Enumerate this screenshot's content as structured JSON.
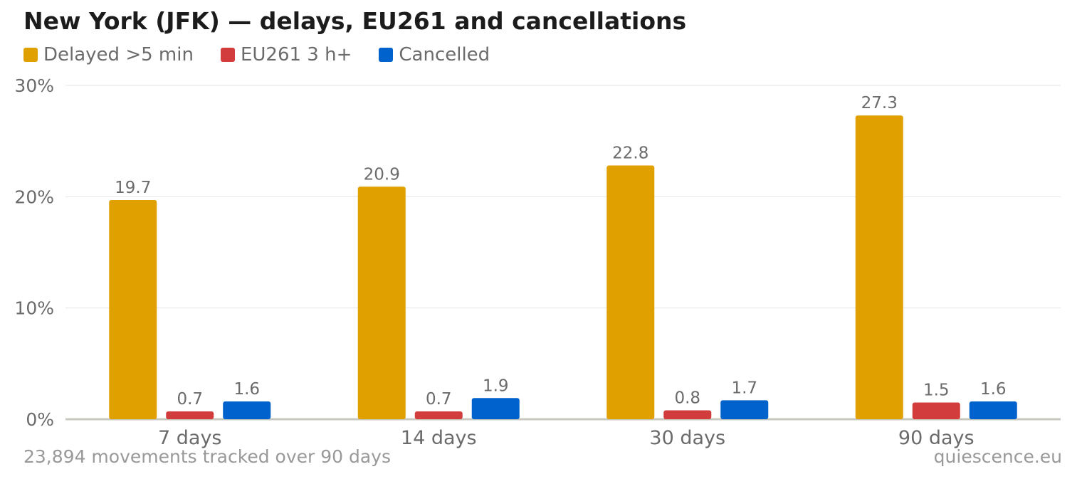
{
  "chart_data": {
    "type": "bar",
    "title": "New York (JFK) — delays, EU261 and cancellations",
    "categories": [
      "7 days",
      "14 days",
      "30 days",
      "90 days"
    ],
    "series": [
      {
        "name": "Delayed >5 min",
        "color": "#e0a000",
        "values": [
          19.7,
          20.9,
          22.8,
          27.3
        ],
        "labels": [
          "19.7",
          "20.9",
          "22.8",
          "27.3"
        ]
      },
      {
        "name": "EU261 3 h+",
        "color": "#d23c3c",
        "values": [
          0.7,
          0.7,
          0.8,
          1.5
        ],
        "labels": [
          "0.7",
          "0.7",
          "0.8",
          "1.5"
        ]
      },
      {
        "name": "Cancelled",
        "color": "#0062cc",
        "values": [
          1.6,
          1.9,
          1.7,
          1.6
        ],
        "labels": [
          "1.6",
          "1.9",
          "1.7",
          "1.6"
        ]
      }
    ],
    "ylim": [
      0,
      30
    ],
    "yticks": [
      0,
      10,
      20,
      30
    ],
    "ytick_labels": [
      "0%",
      "10%",
      "20%",
      "30%"
    ],
    "grid": true,
    "legend_position": "top-left"
  },
  "footer": {
    "note": "23,894 movements tracked over 90 days",
    "source": "quiescence.eu"
  }
}
